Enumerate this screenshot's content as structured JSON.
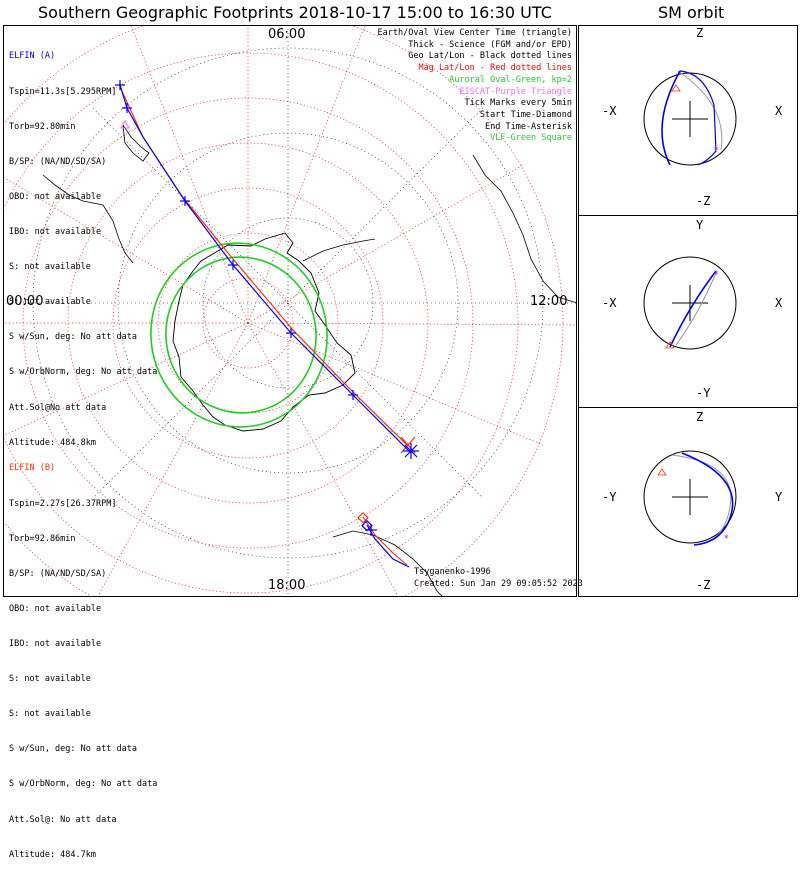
{
  "title": "Southern Geographic Footprints 2018-10-17 15:00 to 16:30 UTC",
  "orbit_title": "SM orbit",
  "map": {
    "labels": {
      "top": "06:00",
      "bottom": "18:00",
      "left": "00:00",
      "right": "12:00"
    }
  },
  "elfin_a": {
    "header": "ELFIN (A)",
    "lines": [
      "Tspin=11.3s[5.295RPM]",
      "Torb=92.80min",
      "B/SP: (NA/ND/SD/SA)",
      "OBO: not available",
      "IBO: not available",
      "S: not available",
      "S: not available",
      "S w/Sun, deg: No att data",
      "S w/OrbNorm, deg: No att data",
      "Att.Sol@No att data",
      "Altitude: 484.8km"
    ]
  },
  "elfin_b": {
    "header": "ELFIN (B)",
    "lines": [
      "Tspin=2.27s[26.37RPM]",
      "Torb=92.86min",
      "B/SP: (NA/ND/SD/SA)",
      "OBO: not available",
      "IBO: not available",
      "S: not available",
      "S: not available",
      "S w/Sun, deg: No att data",
      "S w/OrbNorm, deg: No att data",
      "Att.Sol@: No att data",
      "Altitude: 484.7km"
    ]
  },
  "legend": [
    {
      "text": "Earth/Oval View Center Time (triangle)",
      "color": "#000000"
    },
    {
      "text": "Thick - Science (FGM and/or EPD)",
      "color": "#000000"
    },
    {
      "text": "Geo Lat/Lon - Black dotted lines",
      "color": "#000000"
    },
    {
      "text": "Mag Lat/Lon - Red dotted lines",
      "color": "#ff0000"
    },
    {
      "text": "Auroral Oval-Green, kp=2",
      "color": "#22cc22"
    },
    {
      "text": "EISCAT-Purple Triangle",
      "color": "#ff66ff"
    },
    {
      "text": "Tick Marks every 5min",
      "color": "#000000"
    },
    {
      "text": "Start Time-Diamond",
      "color": "#000000"
    },
    {
      "text": "End Time-Asterisk",
      "color": "#000000"
    },
    {
      "text": "VLF-Green Square",
      "color": "#33cc33"
    }
  ],
  "footer": {
    "model": "Tsyganenko-1996",
    "created": "Created: Sun Jan 29 09:05:52 2023"
  },
  "orbit_panels": [
    {
      "top": "Z",
      "bottom": "-Z",
      "left": "-X",
      "right": "X"
    },
    {
      "top": "Y",
      "bottom": "-Y",
      "left": "-X",
      "right": "X"
    },
    {
      "top": "Z",
      "bottom": "-Z",
      "left": "-Y",
      "right": "Y"
    }
  ],
  "colors": {
    "elfin_a": "#0000ff",
    "elfin_b": "#ff0000",
    "mag_grid": "#ff0000",
    "oval": "#22cc22",
    "eiscat": "#ff66ff"
  }
}
